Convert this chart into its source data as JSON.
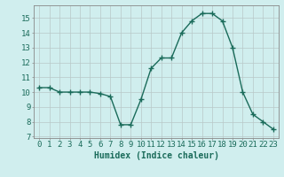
{
  "x": [
    0,
    1,
    2,
    3,
    4,
    5,
    6,
    7,
    8,
    9,
    10,
    11,
    12,
    13,
    14,
    15,
    16,
    17,
    18,
    19,
    20,
    21,
    22,
    23
  ],
  "y": [
    10.3,
    10.3,
    10.0,
    10.0,
    10.0,
    10.0,
    9.9,
    9.7,
    7.8,
    7.8,
    9.5,
    11.6,
    12.3,
    12.3,
    14.0,
    14.8,
    15.3,
    15.3,
    14.8,
    13.0,
    10.0,
    8.5,
    8.0,
    7.5
  ],
  "line_color": "#1a6b5a",
  "marker": "+",
  "marker_size": 4,
  "bg_color": "#d0eeee",
  "grid_color": "#b8c8c8",
  "xlabel": "Humidex (Indice chaleur)",
  "xlabel_fontsize": 7,
  "yticks": [
    7,
    8,
    9,
    10,
    11,
    12,
    13,
    14,
    15
  ],
  "xlim": [
    -0.5,
    23.5
  ],
  "ylim": [
    6.9,
    15.85
  ],
  "tick_fontsize": 6.5,
  "line_width": 1.0
}
